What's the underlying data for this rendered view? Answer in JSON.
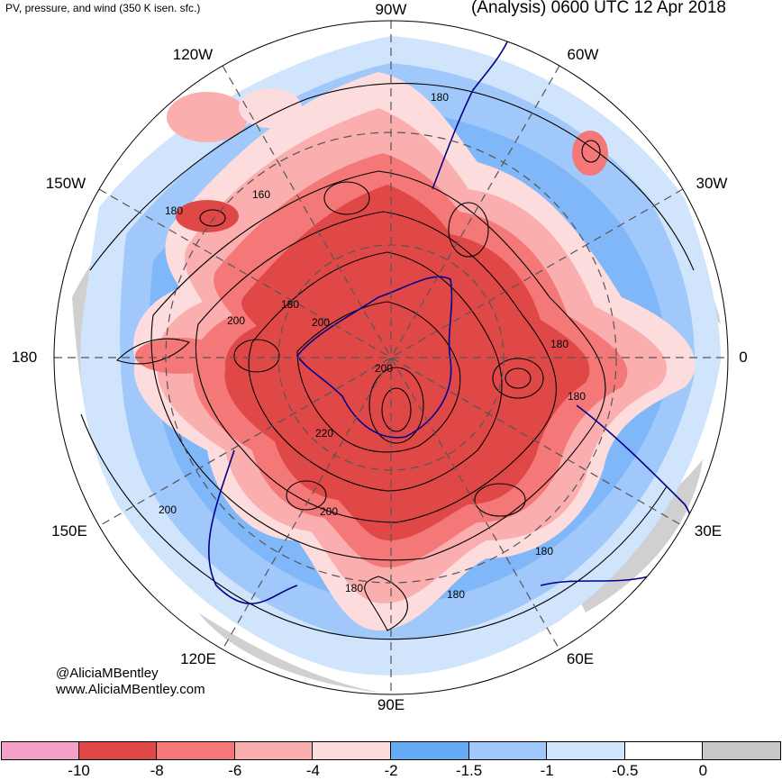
{
  "header": {
    "left_title": "PV, pressure, and wind (350 K isen. sfc.)",
    "right_title": "(Analysis) 0600 UTC 12 Apr 2018"
  },
  "longitude_labels": [
    "90W",
    "60W",
    "30W",
    "0",
    "30E",
    "60E",
    "90E",
    "120E",
    "150E",
    "180",
    "150W",
    "120W"
  ],
  "contour_labels": [
    "180",
    "160",
    "180",
    "180",
    "200",
    "200",
    "200",
    "220",
    "200",
    "200",
    "180",
    "180",
    "180",
    "180",
    "180"
  ],
  "credit": {
    "handle": "@AliciaMBentley",
    "website": "www.AliciaMBentley.com"
  },
  "colorbar": {
    "colors": [
      "#f5a0c8",
      "#e04848",
      "#f57878",
      "#faaeae",
      "#fcdcdc",
      "#64aaf5",
      "#a0c8fa",
      "#d0e4fc",
      "#ffffff",
      "#c8c8c8"
    ],
    "tick_labels": [
      "-10",
      "-8",
      "-6",
      "-4",
      "-2",
      "-1.5",
      "-1",
      "-0.5",
      "0"
    ]
  },
  "colors": {
    "contour": "#000000",
    "coastline": "#00008b",
    "grid": "#555555"
  }
}
